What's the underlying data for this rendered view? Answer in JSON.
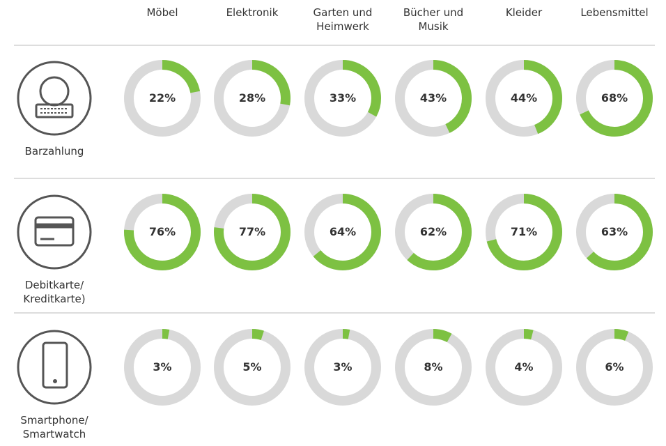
{
  "chart_data": {
    "type": "donut",
    "categories": [
      "Möbel",
      "Elektronik",
      "Garten und Heimwerk",
      "Bücher und Musik",
      "Kleider",
      "Lebensmittel"
    ],
    "color": "#7dc142",
    "track_color": "#d9d9d9",
    "series": [
      {
        "name": "Barzahlung",
        "values": [
          22,
          28,
          33,
          43,
          44,
          68
        ],
        "value_labels": [
          "22%",
          "28%",
          "33%",
          "43%",
          "44%",
          "68%"
        ]
      },
      {
        "name": "Debitkarte/ Kreditkarte)",
        "values": [
          76,
          77,
          64,
          62,
          71,
          63
        ],
        "value_labels": [
          "76%",
          "77%",
          "64%",
          "62%",
          "71%",
          "63%"
        ]
      },
      {
        "name": "Smartphone/ Smartwatch",
        "values": [
          3,
          5,
          3,
          8,
          4,
          6
        ],
        "value_labels": [
          "3%",
          "5%",
          "3%",
          "8%",
          "4%",
          "6%"
        ]
      }
    ]
  }
}
